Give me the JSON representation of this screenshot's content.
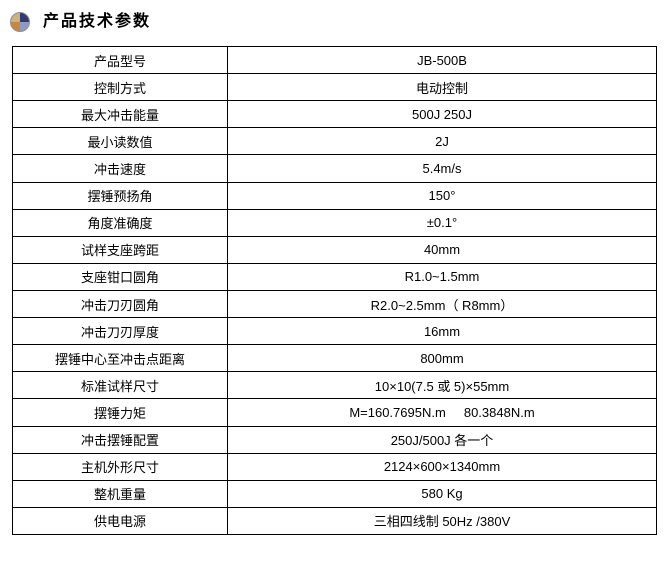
{
  "header": {
    "title": "产品技术参数",
    "icon": "sphere-pie-icon",
    "icon_colors": {
      "top_left": "#ccb182",
      "top_right": "#333a6e",
      "bottom_left": "#c68740",
      "bottom_right": "#8f9ac1",
      "rim": "#8a9099"
    }
  },
  "colors": {
    "background": "#ffffff",
    "table_border": "#000000",
    "text": "#000000"
  },
  "table": {
    "rows": [
      {
        "label": "产品型号",
        "value": "JB-500B"
      },
      {
        "label": "控制方式",
        "value": "电动控制"
      },
      {
        "label": "最大冲击能量",
        "value": "500J 250J"
      },
      {
        "label": "最小读数值",
        "value": "2J"
      },
      {
        "label": "冲击速度",
        "value": "5.4m/s"
      },
      {
        "label": "摆锤预扬角",
        "value": "150°"
      },
      {
        "label": "角度准确度",
        "value": "±0.1°"
      },
      {
        "label": "试样支座跨距",
        "value": "40mm"
      },
      {
        "label": "支座钳口圆角",
        "value": "R1.0~1.5mm"
      },
      {
        "label": "冲击刀刃圆角",
        "value": "R2.0~2.5mm（ R8mm）"
      },
      {
        "label": "冲击刀刃厚度",
        "value": "16mm"
      },
      {
        "label": "摆锤中心至冲击点距离",
        "value": "800mm"
      },
      {
        "label": "标准试样尺寸",
        "value": "10×10(7.5 或 5)×55mm"
      },
      {
        "label": "摆锤力矩",
        "value": "M=160.7695N.m     80.3848N.m"
      },
      {
        "label": "冲击摆锤配置",
        "value": "250J/500J 各一个"
      },
      {
        "label": "主机外形尺寸",
        "value": "2124×600×1340mm"
      },
      {
        "label": "整机重量",
        "value": "580 Kg"
      },
      {
        "label": "供电电源",
        "value": "三相四线制 50Hz /380V"
      }
    ]
  }
}
